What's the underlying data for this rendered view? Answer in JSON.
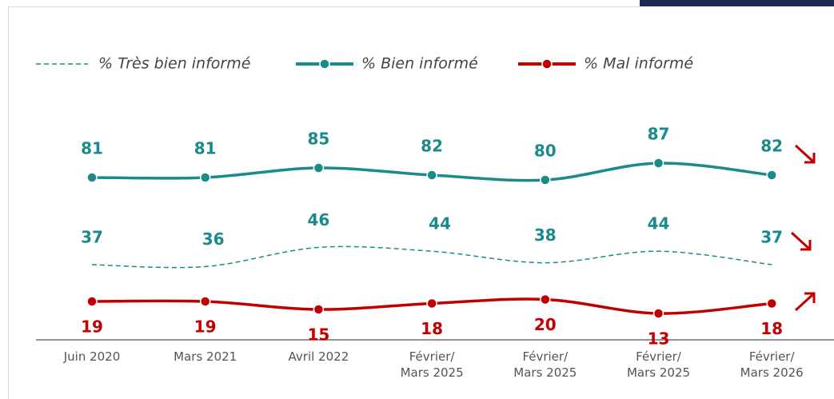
{
  "chart_data": {
    "type": "line",
    "categories": [
      "Juin 2020",
      "Mars 2021",
      "Avril 2022",
      "Février/\nMars 2025",
      "Février/\nMars 2025",
      "Février/\nMars 2025",
      "Février/\nMars 2026"
    ],
    "series": [
      {
        "name": "% Très bien informé",
        "color": "#1a8a8a",
        "dash": true,
        "values": [
          37,
          36,
          46,
          44,
          38,
          44,
          37
        ]
      },
      {
        "name": "% Bien informé",
        "color": "#1a8a8a",
        "dash": false,
        "values": [
          81,
          81,
          85,
          82,
          80,
          87,
          82
        ]
      },
      {
        "name": "% Mal informé",
        "color": "#c00000",
        "dash": false,
        "values": [
          19,
          19,
          15,
          18,
          20,
          13,
          18
        ]
      }
    ]
  }
}
